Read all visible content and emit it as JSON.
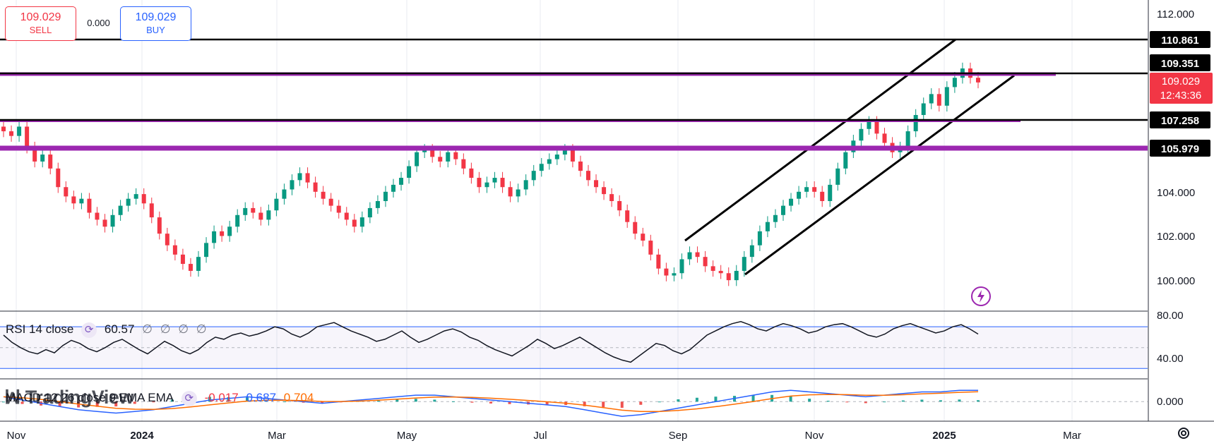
{
  "trade": {
    "sell_price": "109.029",
    "sell_label": "SELL",
    "buy_price": "109.029",
    "buy_label": "BUY",
    "spread": "0.000"
  },
  "price_axis": [
    "112.000",
    "104.000",
    "102.000",
    "100.000"
  ],
  "rsi_axis": [
    "80.00",
    "40.00"
  ],
  "macd_axis": [
    "0.000"
  ],
  "time_axis": [
    "Nov",
    "2024",
    "Mar",
    "May",
    "Jul",
    "Sep",
    "Nov",
    "2025",
    "Mar"
  ],
  "levels": [
    {
      "value": "110.861",
      "color": "#000000"
    },
    {
      "value": "109.351",
      "color": "#000000"
    },
    {
      "value": "107.258",
      "color": "#000000"
    },
    {
      "value": "105.979",
      "color": "#000000"
    }
  ],
  "current_price": {
    "value": "109.029",
    "countdown": "12:43:36",
    "color": "#f23645"
  },
  "rsi": {
    "label": "RSI 14 close",
    "value": "60.57",
    "extras": [
      "∅",
      "∅",
      "∅",
      "∅"
    ]
  },
  "macd": {
    "label": "MACD 12 26 close 9 EMA EMA",
    "hist": "-0.017",
    "macd": "0.687",
    "signal": "0.704",
    "hist_color": "#f23645",
    "macd_color": "#2962ff",
    "signal_color": "#ff6d00"
  },
  "logo": "TradingView",
  "chart_data": {
    "type": "candlestick",
    "price_range": [
      99.2,
      112.3
    ],
    "closes": [
      106.9,
      106.7,
      107.1,
      106.2,
      105.6,
      105.9,
      105.3,
      104.5,
      104.1,
      103.8,
      104.0,
      103.4,
      103.1,
      102.8,
      103.3,
      103.7,
      104.0,
      104.2,
      103.8,
      103.2,
      102.5,
      102.0,
      101.6,
      101.2,
      100.9,
      101.5,
      102.1,
      102.6,
      102.4,
      102.8,
      103.3,
      103.6,
      103.4,
      103.1,
      103.5,
      104.0,
      104.4,
      104.8,
      105.1,
      104.7,
      104.3,
      104.0,
      103.7,
      103.4,
      103.1,
      102.8,
      103.2,
      103.6,
      103.9,
      104.3,
      104.6,
      104.9,
      105.4,
      106.0,
      106.1,
      105.8,
      105.6,
      106.0,
      105.7,
      105.3,
      104.9,
      104.5,
      104.7,
      104.9,
      104.5,
      104.1,
      104.4,
      104.8,
      105.2,
      105.5,
      105.7,
      105.9,
      106.1,
      105.6,
      105.2,
      104.8,
      104.5,
      104.2,
      103.9,
      103.5,
      103.0,
      102.5,
      102.2,
      101.6,
      101.0,
      100.7,
      100.8,
      101.4,
      101.7,
      101.5,
      101.1,
      100.9,
      100.8,
      100.5,
      100.9,
      101.5,
      102.0,
      102.6,
      103.0,
      103.3,
      103.7,
      104.0,
      104.3,
      104.5,
      104.3,
      103.9,
      104.6,
      105.3,
      106.0,
      106.5,
      107.0,
      107.3,
      106.8,
      106.4,
      106.0,
      106.2,
      106.9,
      107.6,
      108.1,
      108.5,
      108.0,
      108.8,
      109.2,
      109.6,
      109.2,
      109.0
    ],
    "levels": [
      110.861,
      109.351,
      107.258,
      105.979
    ],
    "rsi_range": [
      20,
      85
    ],
    "rsi": [
      62,
      55,
      50,
      46,
      44,
      48,
      45,
      52,
      57,
      54,
      49,
      46,
      50,
      55,
      58,
      53,
      48,
      44,
      50,
      56,
      52,
      47,
      44,
      48,
      55,
      60,
      58,
      62,
      64,
      61,
      63,
      66,
      70,
      68,
      63,
      60,
      64,
      70,
      72,
      74,
      70,
      66,
      63,
      60,
      56,
      58,
      62,
      66,
      60,
      55,
      58,
      62,
      66,
      68,
      65,
      60,
      57,
      52,
      48,
      45,
      42,
      47,
      52,
      58,
      54,
      49,
      52,
      56,
      60,
      55,
      50,
      45,
      41,
      38,
      36,
      42,
      48,
      54,
      52,
      47,
      44,
      48,
      55,
      62,
      66,
      70,
      73,
      75,
      72,
      68,
      66,
      70,
      73,
      71,
      68,
      64,
      66,
      70,
      72,
      73,
      70,
      66,
      62,
      60,
      63,
      68,
      71,
      73,
      70,
      67,
      64,
      66,
      70,
      72,
      68,
      63
    ],
    "macd_range": [
      -1.2,
      1.4
    ],
    "macd": [
      0.3,
      0.1,
      -0.1,
      -0.3,
      -0.5,
      -0.6,
      -0.7,
      -0.6,
      -0.5,
      -0.3,
      -0.1,
      0.1,
      0.2,
      0.3,
      0.2,
      0.1,
      0.0,
      -0.1,
      0.0,
      0.1,
      0.2,
      0.3,
      0.4,
      0.4,
      0.3,
      0.2,
      0.1,
      0.0,
      -0.1,
      -0.2,
      -0.3,
      -0.5,
      -0.7,
      -0.9,
      -0.8,
      -0.6,
      -0.4,
      -0.2,
      0.0,
      0.2,
      0.4,
      0.6,
      0.7,
      0.6,
      0.5,
      0.4,
      0.3,
      0.4,
      0.5,
      0.6,
      0.6,
      0.7,
      0.7
    ]
  }
}
